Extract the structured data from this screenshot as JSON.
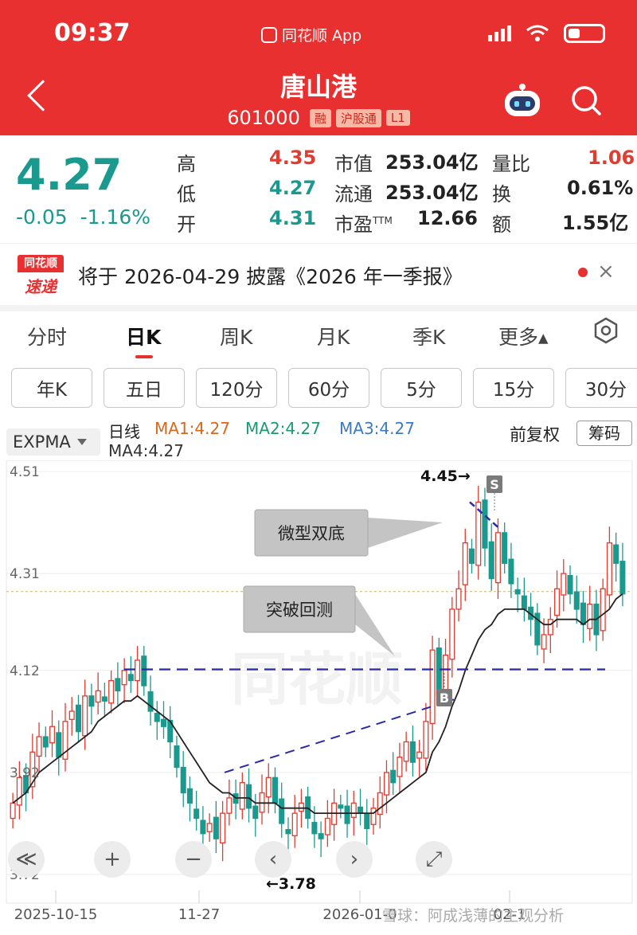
{
  "status_bar": {
    "time": "09:37",
    "app_name": "同花顺 App"
  },
  "header": {
    "stock_name": "唐山港",
    "stock_code": "601000",
    "tags": [
      "融",
      "沪股通",
      "L1"
    ]
  },
  "quote": {
    "price": "4.27",
    "change": "-0.05",
    "change_pct": "-1.16%",
    "high_label": "高",
    "high": "4.35",
    "low_label": "低",
    "low": "4.27",
    "open_label": "开",
    "open": "4.31",
    "mktcap_label": "市值",
    "mktcap": "253.04亿",
    "float_label": "流通",
    "float": "253.04亿",
    "pe_label": "市盈",
    "pe_sup": "TTM",
    "pe": "12.66",
    "volratio_label": "量比",
    "volratio": "1.06",
    "turnover_label": "换",
    "turnover": "0.61%",
    "amount_label": "额",
    "amount": "1.55亿",
    "colors": {
      "up": "#e23b30",
      "down": "#1a9a8e"
    }
  },
  "notice": {
    "badge_top": "同花顺",
    "badge_bottom": "速递",
    "text": "将于 2026-04-29 披露《2026 年一季报》",
    "close": "×"
  },
  "tabs": [
    "分时",
    "日K",
    "周K",
    "月K",
    "季K",
    "更多▴"
  ],
  "active_tab": "日K",
  "sub_periods": [
    "年K",
    "五日",
    "120分",
    "60分",
    "5分",
    "15分",
    "30分"
  ],
  "indicator": {
    "selector": "EXPMA",
    "line_label": "日线",
    "ma1": "MA1:4.27",
    "ma2": "MA2:4.27",
    "ma3": "MA3:4.27",
    "ma4": "MA4:4.27",
    "adjust": "前复权",
    "chip": "筹码",
    "ma_colors": {
      "ma1": "#d8661b",
      "ma2": "#1a9a6e",
      "ma3": "#3b7ac0",
      "ma4": "#333333"
    }
  },
  "chart_data": {
    "type": "candlestick",
    "y_ticks": [
      "4.51",
      "4.31",
      "4.12",
      "3.92",
      "3.72"
    ],
    "x_ticks": [
      "2025-10-15",
      "11-27",
      "2026-01-0",
      "02-1"
    ],
    "ylim": [
      3.72,
      4.51
    ],
    "annotations": {
      "high": "4.45→",
      "low": "←3.78",
      "callout1": "微型双底",
      "callout2": "突破回测",
      "marker_sell": "S",
      "marker_buy": "B",
      "watermark": "同花顺",
      "credit": "雪球：阿成浅薄的主观分析"
    },
    "candles_close": [
      3.86,
      3.91,
      3.88,
      3.96,
      3.99,
      3.97,
      4.01,
      3.95,
      4.02,
      4.04,
      4.0,
      4.07,
      4.05,
      4.08,
      4.06,
      4.1,
      4.08,
      4.12,
      4.1,
      4.14,
      4.09,
      4.04,
      4.02,
      4.01,
      3.98,
      3.93,
      3.88,
      3.86,
      3.83,
      3.8,
      3.82,
      3.79,
      3.84,
      3.87,
      3.86,
      3.9,
      3.85,
      3.83,
      3.88,
      3.91,
      3.86,
      3.82,
      3.8,
      3.84,
      3.86,
      3.83,
      3.8,
      3.79,
      3.83,
      3.86,
      3.85,
      3.82,
      3.86,
      3.84,
      3.81,
      3.85,
      3.88,
      3.92,
      3.9,
      3.95,
      3.98,
      3.94,
      3.96,
      4.02,
      4.16,
      4.07,
      4.15,
      4.24,
      4.28,
      4.37,
      4.33,
      4.45,
      4.36,
      4.3,
      4.39,
      4.33,
      4.29,
      4.27,
      4.24,
      4.22,
      4.17,
      4.19,
      4.22,
      4.28,
      4.31,
      4.27,
      4.24,
      4.21,
      4.25,
      4.19,
      4.28,
      4.37,
      4.33,
      4.27
    ],
    "ema_line": [
      3.86,
      3.87,
      3.88,
      3.9,
      3.92,
      3.93,
      3.94,
      3.95,
      3.96,
      3.97,
      3.98,
      3.99,
      4.0,
      4.02,
      4.03,
      4.04,
      4.05,
      4.06,
      4.06,
      4.07,
      4.06,
      4.05,
      4.04,
      4.03,
      4.02,
      4.0,
      3.98,
      3.96,
      3.94,
      3.92,
      3.9,
      3.89,
      3.88,
      3.88,
      3.87,
      3.87,
      3.87,
      3.86,
      3.86,
      3.86,
      3.86,
      3.85,
      3.85,
      3.85,
      3.85,
      3.85,
      3.84,
      3.84,
      3.84,
      3.84,
      3.84,
      3.84,
      3.84,
      3.84,
      3.84,
      3.84,
      3.85,
      3.86,
      3.87,
      3.88,
      3.89,
      3.9,
      3.91,
      3.92,
      3.96,
      3.98,
      4.01,
      4.05,
      4.08,
      4.12,
      4.15,
      4.18,
      4.2,
      4.21,
      4.23,
      4.24,
      4.24,
      4.24,
      4.24,
      4.23,
      4.22,
      4.21,
      4.21,
      4.22,
      4.22,
      4.22,
      4.22,
      4.21,
      4.22,
      4.22,
      4.23,
      4.24,
      4.26,
      4.27
    ]
  },
  "controls": [
    "≪",
    "+",
    "−",
    "‹",
    "›",
    "⤢"
  ]
}
